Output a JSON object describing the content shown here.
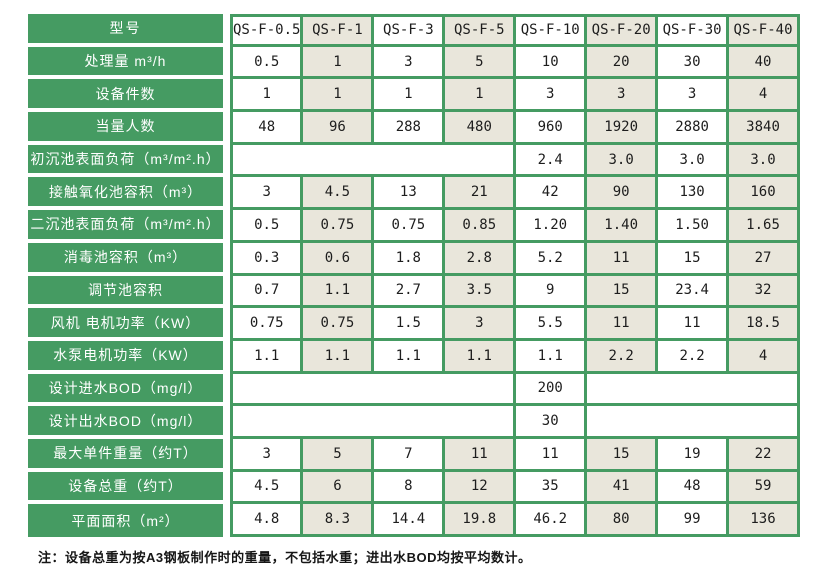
{
  "colors": {
    "green": "#459b62",
    "beige": "#e9e6db",
    "label_text": "#ffffff",
    "data_text": "#1d1d1d"
  },
  "table": {
    "header": {
      "label": "型号",
      "models": [
        "QS-F-0.5",
        "QS-F-1",
        "QS-F-3",
        "QS-F-5",
        "QS-F-10",
        "QS-F-20",
        "QS-F-30",
        "QS-F-40"
      ]
    },
    "rows": [
      {
        "label": "处理量 m³/h",
        "values": [
          "0.5",
          "1",
          "3",
          "5",
          "10",
          "20",
          "30",
          "40"
        ]
      },
      {
        "label": "设备件数",
        "values": [
          "1",
          "1",
          "1",
          "1",
          "3",
          "3",
          "3",
          "4"
        ]
      },
      {
        "label": "当量人数",
        "values": [
          "48",
          "96",
          "288",
          "480",
          "960",
          "1920",
          "2880",
          "3840"
        ]
      },
      {
        "label": "初沉池表面负荷（m³/m².h）",
        "type": "half",
        "values": [
          "2.4",
          "3.0",
          "3.0",
          "3.0"
        ]
      },
      {
        "label": "接触氧化池容积（m³）",
        "values": [
          "3",
          "4.5",
          "13",
          "21",
          "42",
          "90",
          "130",
          "160"
        ]
      },
      {
        "label": "二沉池表面负荷（m³/m².h）",
        "values": [
          "0.5",
          "0.75",
          "0.75",
          "0.85",
          "1.20",
          "1.40",
          "1.50",
          "1.65"
        ]
      },
      {
        "label": "消毒池容积（m³）",
        "values": [
          "0.3",
          "0.6",
          "1.8",
          "2.8",
          "5.2",
          "11",
          "15",
          "27"
        ]
      },
      {
        "label": "调节池容积",
        "values": [
          "0.7",
          "1.1",
          "2.7",
          "3.5",
          "9",
          "15",
          "23.4",
          "32"
        ]
      },
      {
        "label": "风机 电机功率（KW）",
        "values": [
          "0.75",
          "0.75",
          "1.5",
          "3",
          "5.5",
          "11",
          "11",
          "18.5"
        ]
      },
      {
        "label": "水泵电机功率（KW）",
        "values": [
          "1.1",
          "1.1",
          "1.1",
          "1.1",
          "1.1",
          "2.2",
          "2.2",
          "4"
        ]
      },
      {
        "label": "设计进水BOD（mg/l）",
        "type": "center",
        "value": "200"
      },
      {
        "label": "设计出水BOD（mg/l）",
        "type": "center",
        "value": "30"
      },
      {
        "label": "最大单件重量（约T）",
        "values": [
          "3",
          "5",
          "7",
          "11",
          "11",
          "15",
          "19",
          "22"
        ]
      },
      {
        "label": "设备总重（约T）",
        "values": [
          "4.5",
          "6",
          "8",
          "12",
          "35",
          "41",
          "48",
          "59"
        ]
      },
      {
        "label": "平面面积（m²）",
        "values": [
          "4.8",
          "8.3",
          "14.4",
          "19.8",
          "46.2",
          "80",
          "99",
          "136"
        ]
      }
    ],
    "footnote": "注：设备总重为按A3钢板制作时的重量，不包括水重；进出水BOD均按平均数计。"
  }
}
